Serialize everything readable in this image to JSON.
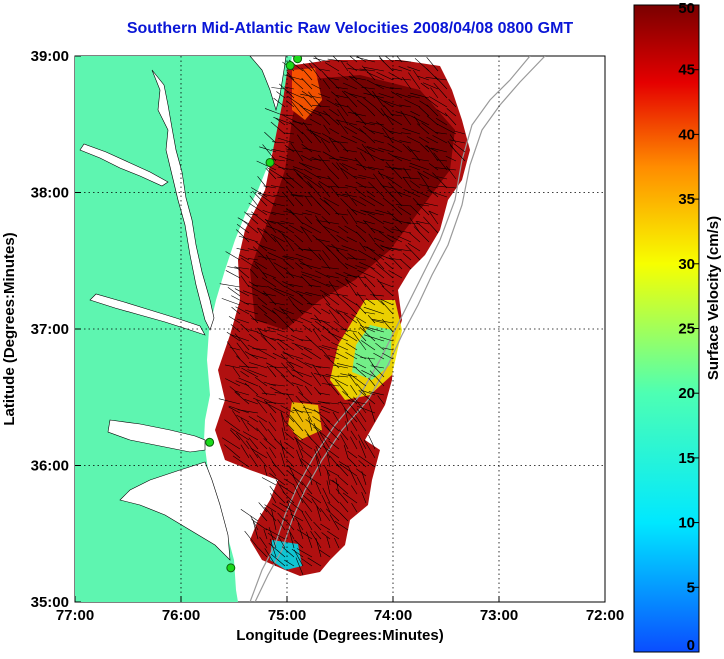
{
  "title": "Southern Mid-Atlantic Raw Velocities 2008/04/08 0800 GMT",
  "map": {
    "xlabel": "Longitude (Degrees:Minutes)",
    "ylabel": "Latitude (Degrees:Minutes)",
    "lon_range": [
      -77,
      -72
    ],
    "lat_range": [
      35,
      39
    ],
    "x_ticks": [
      "77:00",
      "76:00",
      "75:00",
      "74:00",
      "73:00",
      "72:00"
    ],
    "y_ticks": [
      "35:00",
      "36:00",
      "37:00",
      "38:00",
      "39:00"
    ],
    "land_color": "#5ef5b0",
    "grid": "dotted"
  },
  "colorbar": {
    "label": "Surface Velocity (cm/s)",
    "min": 0,
    "max": 50,
    "ticks": [
      "0",
      "5",
      "10",
      "15",
      "20",
      "25",
      "30",
      "35",
      "40",
      "45",
      "50"
    ]
  },
  "stations": [
    {
      "lon": -74.9,
      "lat": 38.98
    },
    {
      "lon": -74.97,
      "lat": 38.93
    },
    {
      "lon": -75.16,
      "lat": 38.22
    },
    {
      "lon": -75.73,
      "lat": 36.17
    },
    {
      "lon": -75.53,
      "lat": 35.25
    }
  ]
}
